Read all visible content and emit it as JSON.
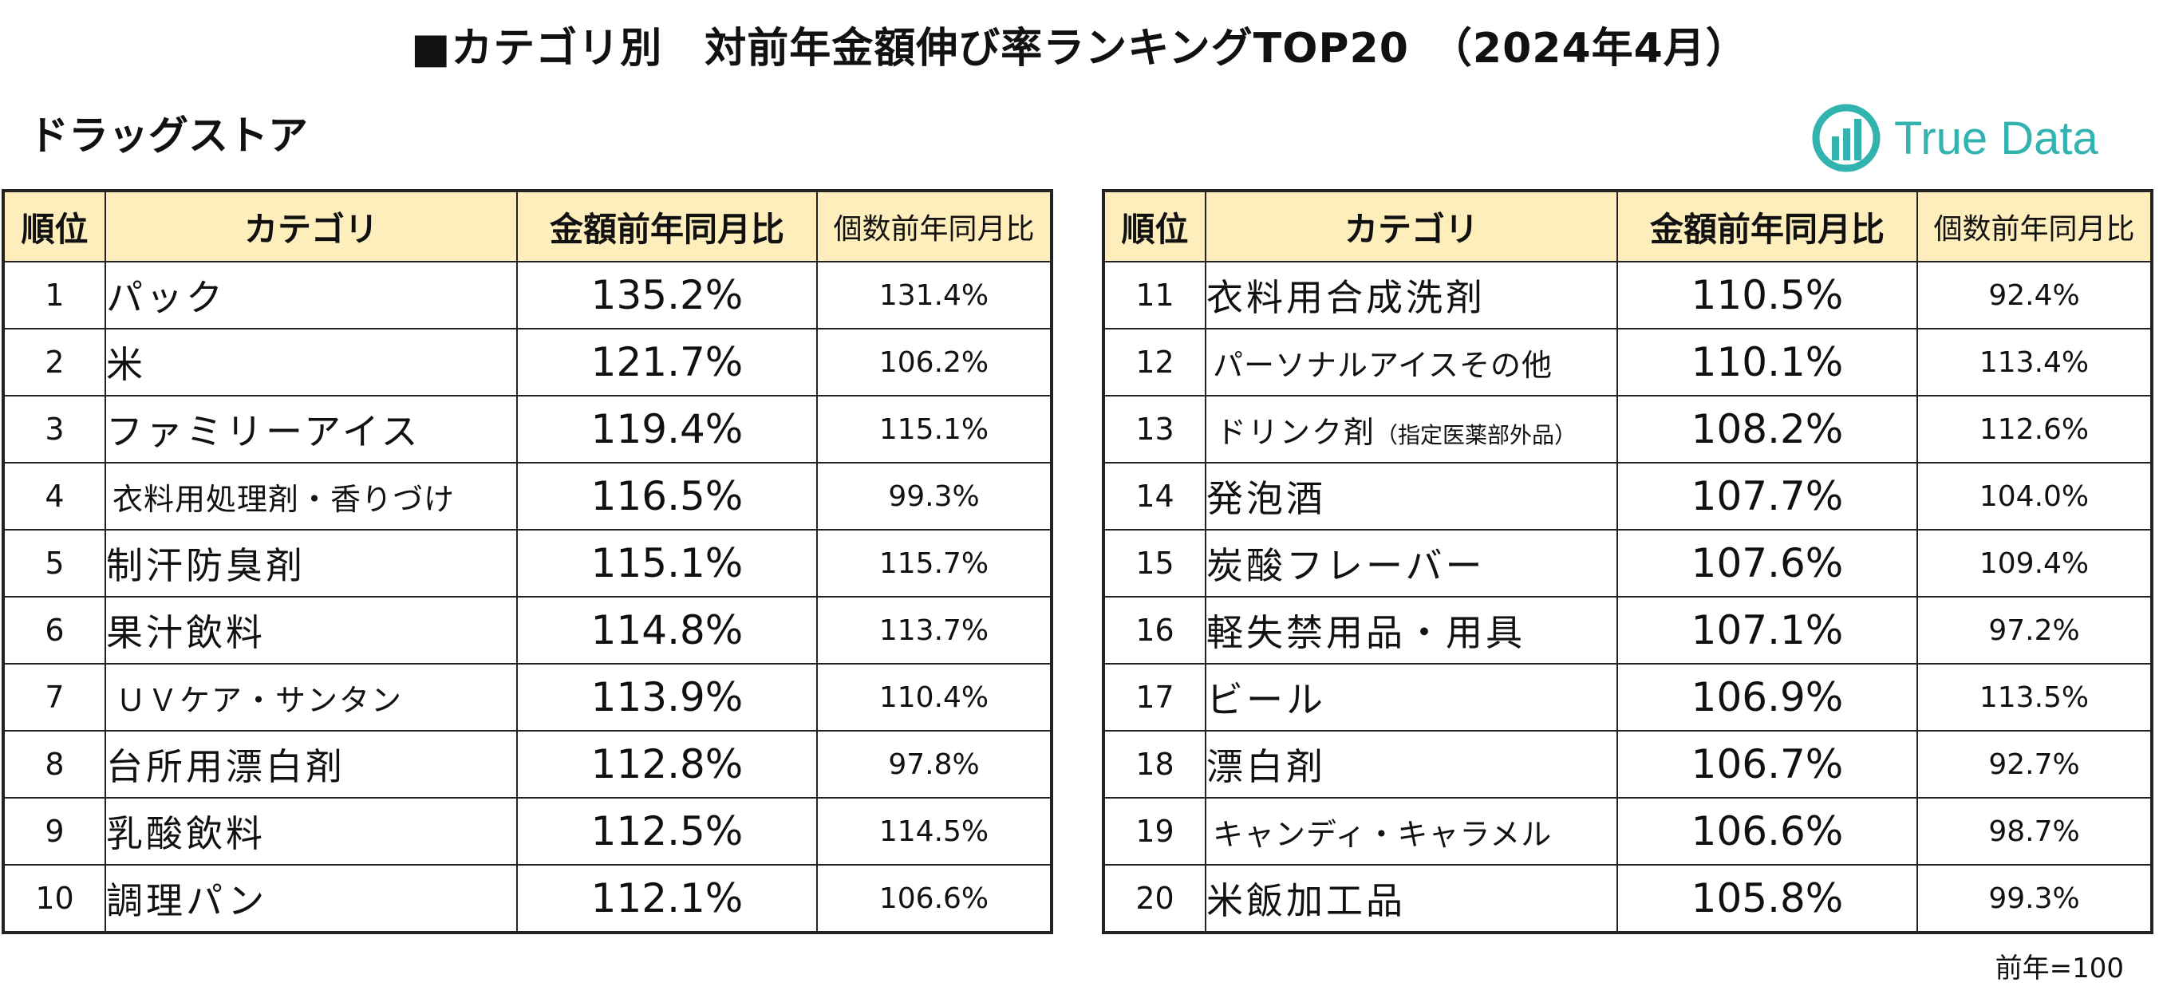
{
  "title": "■カテゴリ別　対前年金額伸び率ランキングTOP20　（2024年4月）",
  "subtitle": "ドラッグストア",
  "logo": {
    "text": "True Data",
    "color": "#33b3b0"
  },
  "headers": {
    "rank": "順位",
    "category": "カテゴリ",
    "amount_yoy": "金額前年同月比",
    "qty_yoy": "個数前年同月比"
  },
  "left_rows": [
    {
      "rank": "1",
      "category": "パック",
      "amount": "135.2%",
      "qty": "131.4%"
    },
    {
      "rank": "2",
      "category": "米",
      "amount": "121.7%",
      "qty": "106.2%"
    },
    {
      "rank": "3",
      "category": "ファミリーアイス",
      "amount": "119.4%",
      "qty": "115.1%"
    },
    {
      "rank": "4",
      "category": "衣料用処理剤・香りづけ",
      "amount": "116.5%",
      "qty": "99.3%"
    },
    {
      "rank": "5",
      "category": "制汗防臭剤",
      "amount": "115.1%",
      "qty": "115.7%"
    },
    {
      "rank": "6",
      "category": "果汁飲料",
      "amount": "114.8%",
      "qty": "113.7%"
    },
    {
      "rank": "7",
      "category": "ＵＶケア・サンタン",
      "amount": "113.9%",
      "qty": "110.4%"
    },
    {
      "rank": "8",
      "category": "台所用漂白剤",
      "amount": "112.8%",
      "qty": "97.8%"
    },
    {
      "rank": "9",
      "category": "乳酸飲料",
      "amount": "112.5%",
      "qty": "114.5%"
    },
    {
      "rank": "10",
      "category": "調理パン",
      "amount": "112.1%",
      "qty": "106.6%"
    }
  ],
  "right_rows": [
    {
      "rank": "11",
      "category": "衣料用合成洗剤",
      "amount": "110.5%",
      "qty": "92.4%"
    },
    {
      "rank": "12",
      "category": "パーソナルアイスその他",
      "amount": "110.1%",
      "qty": "113.4%"
    },
    {
      "rank": "13",
      "category": "ドリンク剤",
      "category_note": "（指定医薬部外品）",
      "amount": "108.2%",
      "qty": "112.6%"
    },
    {
      "rank": "14",
      "category": "発泡酒",
      "amount": "107.7%",
      "qty": "104.0%"
    },
    {
      "rank": "15",
      "category": "炭酸フレーバー",
      "amount": "107.6%",
      "qty": "109.4%"
    },
    {
      "rank": "16",
      "category": "軽失禁用品・用具",
      "amount": "107.1%",
      "qty": "97.2%"
    },
    {
      "rank": "17",
      "category": "ビール",
      "amount": "106.9%",
      "qty": "113.5%"
    },
    {
      "rank": "18",
      "category": "漂白剤",
      "amount": "106.7%",
      "qty": "92.7%"
    },
    {
      "rank": "19",
      "category": "キャンディ・キャラメル",
      "amount": "106.6%",
      "qty": "98.7%"
    },
    {
      "rank": "20",
      "category": "米飯加工品",
      "amount": "105.8%",
      "qty": "99.3%"
    }
  ],
  "note": "前年=100",
  "colors": {
    "header_bg": "#fdeebc",
    "border": "#222222"
  }
}
